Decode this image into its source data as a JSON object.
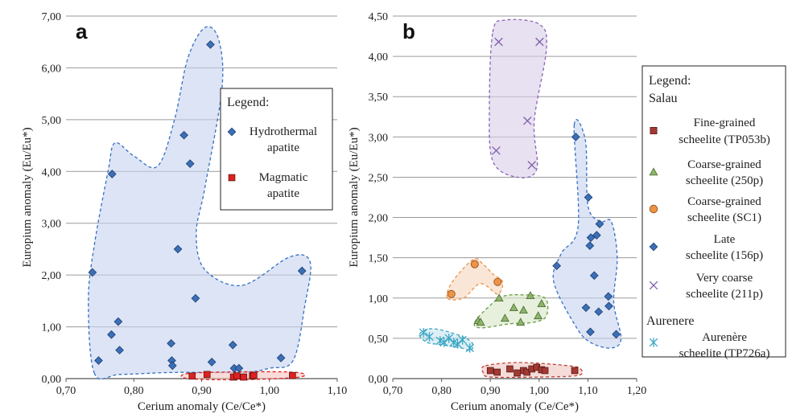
{
  "chart_data": [
    {
      "panel": "a",
      "type": "scatter",
      "xlabel": "Cerium anomaly (Ce/Ce*)",
      "ylabel": "Europium anomaly (Eu/Eu*)",
      "xlim": [
        0.7,
        1.1
      ],
      "ylim": [
        0.0,
        7.0
      ],
      "xticks": [
        "0,70",
        "0,80",
        "0,90",
        "1,00",
        "1,10"
      ],
      "yticks": [
        "0,00",
        "1,00",
        "2,00",
        "3,00",
        "4,00",
        "5,00",
        "6,00",
        "7,00"
      ],
      "grid": "horizontal",
      "legend_title": "Legend:",
      "legend_position": "right",
      "series": [
        {
          "name": "Hydrothermal apatite",
          "legend_lines": [
            "Hydrothermal",
            "apatite"
          ],
          "marker": "diamond",
          "color": "#3b6fb6",
          "x": [
            0.913,
            0.874,
            0.883,
            0.768,
            0.865,
            0.739,
            1.048,
            0.891,
            0.777,
            0.767,
            0.779,
            0.855,
            0.748,
            0.946,
            0.856,
            0.857,
            0.915,
            1.017,
            0.948,
            0.955
          ],
          "y": [
            6.45,
            4.7,
            4.15,
            3.95,
            2.5,
            2.05,
            2.08,
            1.55,
            1.1,
            0.85,
            0.55,
            0.68,
            0.35,
            0.65,
            0.35,
            0.25,
            0.32,
            0.4,
            0.2,
            0.2
          ]
        },
        {
          "name": "Magmatic apatite",
          "legend_lines": [
            "Magmatic",
            "apatite"
          ],
          "marker": "square",
          "color": "#e02020",
          "x": [
            0.886,
            0.908,
            0.947,
            0.952,
            0.962,
            0.975,
            0.977,
            1.034
          ],
          "y": [
            0.05,
            0.08,
            0.03,
            0.05,
            0.03,
            0.05,
            0.06,
            0.06
          ]
        }
      ]
    },
    {
      "panel": "b",
      "type": "scatter",
      "xlabel": "Cerium anomaly (Ce/Ce*)",
      "ylabel": "Europium anomaly (Eu/Eu*)",
      "xlim": [
        0.7,
        1.2
      ],
      "ylim": [
        0.0,
        4.5
      ],
      "xticks": [
        "0,70",
        "0,80",
        "0,90",
        "1,00",
        "1,10",
        "1,20"
      ],
      "yticks": [
        "0,00",
        "0,50",
        "1,00",
        "1,50",
        "2,00",
        "2,50",
        "3,00",
        "3,50",
        "4,00",
        "4,50"
      ],
      "grid": "horizontal",
      "legend_title": "Legend:",
      "legend_group1": "Salau",
      "legend_group2": "Aurenere",
      "legend_position": "right",
      "series": [
        {
          "name": "Fine-grained scheelite (TP053b)",
          "legend_lines": [
            "Fine-grained",
            "scheelite (TP053b)"
          ],
          "marker": "square",
          "color": "#a33a33",
          "x": [
            0.9,
            0.914,
            0.94,
            0.955,
            0.968,
            0.975,
            0.985,
            0.995,
            1.005,
            1.012,
            1.073
          ],
          "y": [
            0.1,
            0.08,
            0.12,
            0.07,
            0.1,
            0.08,
            0.12,
            0.14,
            0.11,
            0.1,
            0.1
          ]
        },
        {
          "name": "Coarse-grained scheelite (250p)",
          "legend_lines": [
            "Coarse-grained",
            "scheelite (250p)"
          ],
          "marker": "triangle",
          "color": "#8cb46a",
          "x": [
            0.875,
            0.88,
            0.918,
            0.93,
            0.948,
            0.962,
            0.968,
            0.982,
            0.998,
            1.005
          ],
          "y": [
            0.72,
            0.7,
            1.0,
            0.75,
            0.88,
            0.7,
            0.85,
            1.03,
            0.78,
            0.93
          ]
        },
        {
          "name": "Coarse-grained scheelite (SC1)",
          "legend_lines": [
            "Coarse-grained",
            "scheelite (SC1)"
          ],
          "marker": "circle",
          "color": "#ec9346",
          "x": [
            0.82,
            0.868,
            0.915
          ],
          "y": [
            1.05,
            1.42,
            1.2
          ]
        },
        {
          "name": "Late scheelite (156p)",
          "legend_lines": [
            "Late",
            "scheelite (156p)"
          ],
          "marker": "diamond",
          "color": "#3b6fb6",
          "x": [
            1.075,
            1.101,
            1.104,
            1.106,
            1.118,
            1.124,
            1.142,
            1.036,
            1.096,
            1.113,
            1.122,
            1.143,
            1.105,
            1.158
          ],
          "y": [
            3.0,
            2.25,
            1.65,
            1.75,
            1.78,
            1.92,
            1.02,
            1.4,
            0.88,
            1.28,
            0.83,
            0.9,
            0.58,
            0.55
          ]
        },
        {
          "name": "Very coarse scheelite (211p)",
          "legend_lines": [
            "Very coarse",
            "scheelite (211p)"
          ],
          "marker": "x",
          "color": "#8060a8",
          "x": [
            0.917,
            1.001,
            0.976,
            0.912,
            0.985
          ],
          "y": [
            4.18,
            4.18,
            3.2,
            2.83,
            2.65
          ]
        },
        {
          "name": "Aurenère scheelite (TP726a)",
          "legend_lines": [
            "Aurenère",
            "scheelite (TP726a)"
          ],
          "marker": "star",
          "color": "#3aa6c4",
          "x": [
            0.763,
            0.775,
            0.797,
            0.805,
            0.815,
            0.825,
            0.833,
            0.843,
            0.858
          ],
          "y": [
            0.57,
            0.52,
            0.47,
            0.45,
            0.5,
            0.45,
            0.43,
            0.48,
            0.38
          ]
        }
      ]
    }
  ]
}
